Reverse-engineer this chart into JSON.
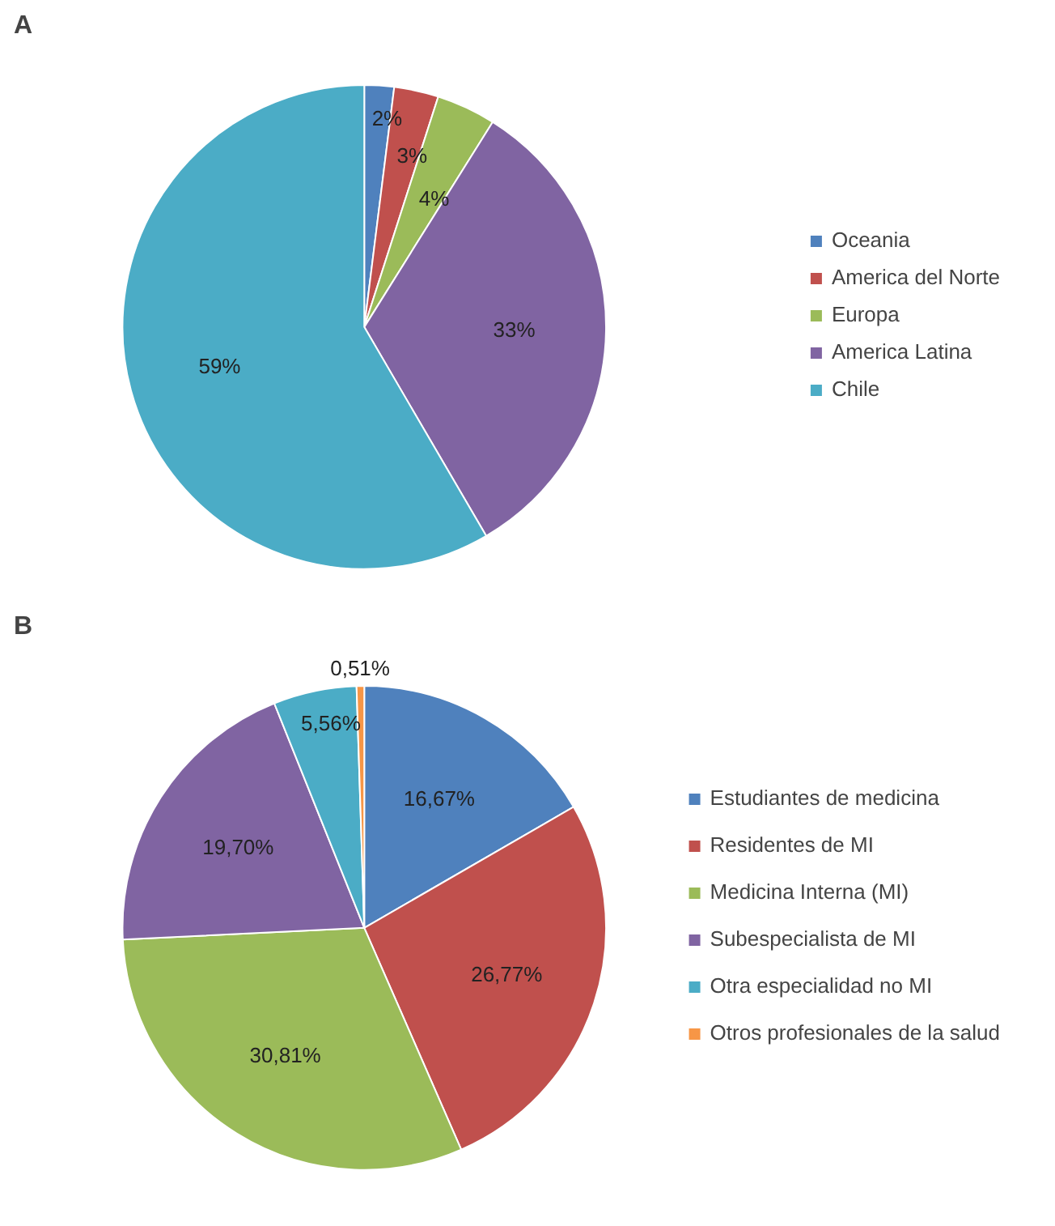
{
  "chart_data": [
    {
      "type": "pie",
      "title": "A",
      "categories": [
        "Oceania",
        "America del Norte",
        "Europa",
        "America Latina",
        "Chile"
      ],
      "values": [
        2,
        3,
        4,
        33,
        59
      ],
      "colors": [
        "#4f81bd",
        "#c0504d",
        "#9bbb59",
        "#8064a2",
        "#4bacc6"
      ],
      "data_labels": true,
      "value_labels": [
        "2%",
        "3%",
        "4%",
        "33%",
        "59%"
      ],
      "legend": "right"
    },
    {
      "type": "pie",
      "title": "B",
      "categories": [
        "Estudiantes de medicina",
        "Residentes de MI",
        "Medicina Interna (MI)",
        "Subespecialista de MI",
        "Otra especialidad no MI",
        "Otros profesionales de la salud"
      ],
      "values": [
        16.67,
        26.77,
        30.81,
        19.7,
        5.56,
        0.51
      ],
      "colors": [
        "#4f81bd",
        "#c0504d",
        "#9bbb59",
        "#8064a2",
        "#4bacc6",
        "#f79646"
      ],
      "data_labels": true,
      "value_labels": [
        "16,67%",
        "26,77%",
        "30,81%",
        "19,70%",
        "5,56%",
        "0,51%"
      ],
      "legend": "right"
    }
  ]
}
